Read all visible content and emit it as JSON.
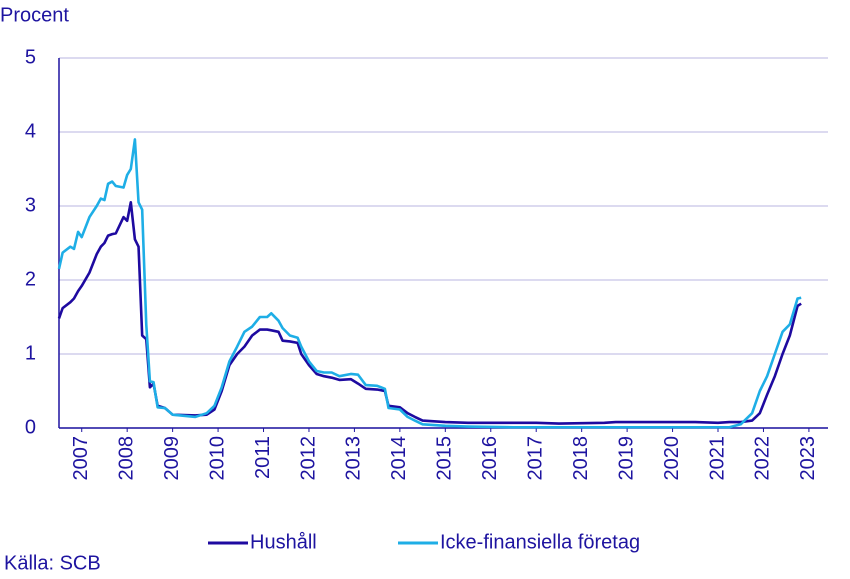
{
  "chart_data": {
    "type": "line",
    "y_label": "Procent",
    "source": "Källa: SCB",
    "x": [
      2007.0,
      2007.08,
      2007.25,
      2007.33,
      2007.42,
      2007.5,
      2007.67,
      2007.83,
      2007.92,
      2008.0,
      2008.08,
      2008.17,
      2008.25,
      2008.42,
      2008.5,
      2008.58,
      2008.67,
      2008.75,
      2008.83,
      2008.92,
      2009.0,
      2009.08,
      2009.17,
      2009.33,
      2009.5,
      2010.0,
      2010.25,
      2010.42,
      2010.58,
      2010.75,
      2010.92,
      2011.08,
      2011.25,
      2011.42,
      2011.58,
      2011.67,
      2011.83,
      2011.92,
      2012.08,
      2012.25,
      2012.33,
      2012.5,
      2012.67,
      2012.83,
      2013.0,
      2013.17,
      2013.42,
      2013.58,
      2013.75,
      2014.0,
      2014.17,
      2014.25,
      2014.5,
      2014.67,
      2014.83,
      2015.0,
      2015.5,
      2016.0,
      2017.0,
      2017.5,
      2018.0,
      2019.0,
      2019.25,
      2020.0,
      2021.0,
      2021.5,
      2021.75,
      2022.0,
      2022.25,
      2022.42,
      2022.58,
      2022.75,
      2022.92,
      2023.08,
      2023.25,
      2023.33
    ],
    "series": [
      {
        "name": "Hushåll",
        "color": "#1e0aa0",
        "values": [
          1.48,
          1.62,
          1.7,
          1.75,
          1.85,
          1.92,
          2.1,
          2.35,
          2.45,
          2.5,
          2.6,
          2.62,
          2.63,
          2.85,
          2.8,
          3.05,
          2.55,
          2.45,
          1.25,
          1.2,
          0.55,
          0.6,
          0.3,
          0.27,
          0.18,
          0.17,
          0.18,
          0.25,
          0.5,
          0.85,
          1.0,
          1.1,
          1.25,
          1.33,
          1.33,
          1.32,
          1.3,
          1.18,
          1.17,
          1.15,
          1.0,
          0.85,
          0.73,
          0.7,
          0.68,
          0.65,
          0.66,
          0.6,
          0.53,
          0.52,
          0.5,
          0.3,
          0.28,
          0.2,
          0.15,
          0.1,
          0.08,
          0.07,
          0.07,
          0.07,
          0.06,
          0.07,
          0.08,
          0.08,
          0.08,
          0.07,
          0.08,
          0.08,
          0.1,
          0.2,
          0.45,
          0.7,
          1.0,
          1.25,
          1.65,
          1.68
        ]
      },
      {
        "name": "Icke-finansiella företag",
        "color": "#1eaee6",
        "values": [
          2.15,
          2.37,
          2.45,
          2.42,
          2.65,
          2.58,
          2.85,
          3.0,
          3.1,
          3.08,
          3.3,
          3.33,
          3.27,
          3.25,
          3.42,
          3.5,
          3.9,
          3.05,
          2.95,
          1.4,
          0.63,
          0.62,
          0.28,
          0.27,
          0.18,
          0.15,
          0.2,
          0.3,
          0.55,
          0.9,
          1.1,
          1.3,
          1.37,
          1.5,
          1.5,
          1.55,
          1.45,
          1.35,
          1.25,
          1.22,
          1.1,
          0.9,
          0.77,
          0.75,
          0.75,
          0.7,
          0.73,
          0.72,
          0.58,
          0.57,
          0.53,
          0.27,
          0.25,
          0.15,
          0.1,
          0.05,
          0.03,
          0.02,
          0.01,
          0.01,
          0.01,
          0.01,
          0.01,
          0.01,
          0.01,
          0.01,
          0.01,
          0.05,
          0.2,
          0.5,
          0.7,
          1.0,
          1.3,
          1.4,
          1.75,
          1.76
        ]
      }
    ],
    "xlim": [
      2007,
      2023.92
    ],
    "xticks": [
      {
        "value": 2007.5,
        "label": "2007"
      },
      {
        "value": 2008.5,
        "label": "2008"
      },
      {
        "value": 2009.5,
        "label": "2009"
      },
      {
        "value": 2010.5,
        "label": "2010"
      },
      {
        "value": 2011.5,
        "label": "2011"
      },
      {
        "value": 2012.5,
        "label": "2012"
      },
      {
        "value": 2013.5,
        "label": "2013"
      },
      {
        "value": 2014.5,
        "label": "2014"
      },
      {
        "value": 2015.5,
        "label": "2015"
      },
      {
        "value": 2016.5,
        "label": "2016"
      },
      {
        "value": 2017.5,
        "label": "2017"
      },
      {
        "value": 2018.5,
        "label": "2018"
      },
      {
        "value": 2019.5,
        "label": "2019"
      },
      {
        "value": 2020.5,
        "label": "2020"
      },
      {
        "value": 2021.5,
        "label": "2021"
      },
      {
        "value": 2022.5,
        "label": "2022"
      },
      {
        "value": 2023.5,
        "label": "2023"
      }
    ],
    "ylim": [
      0,
      5
    ],
    "yticks": [
      0,
      1,
      2,
      3,
      4,
      5
    ],
    "grid": true
  }
}
